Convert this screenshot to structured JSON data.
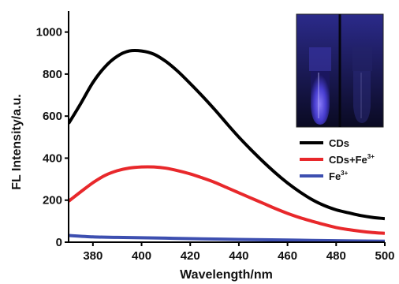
{
  "chart_data": {
    "type": "line",
    "xlabel": "Wavelength/nm",
    "ylabel": "FL Intensity/a.u.",
    "xlim": [
      370,
      500
    ],
    "ylim": [
      0,
      1100
    ],
    "xticks": [
      380,
      400,
      420,
      440,
      460,
      480,
      500
    ],
    "yticks": [
      0,
      200,
      400,
      600,
      800,
      1000
    ],
    "legend": "bottom-right inside",
    "series": [
      {
        "name": "CDs",
        "color": "#000000",
        "x": [
          370,
          375,
          380,
          385,
          390,
          395,
          400,
          405,
          410,
          415,
          420,
          425,
          430,
          435,
          440,
          445,
          450,
          455,
          460,
          465,
          470,
          475,
          480,
          485,
          490,
          495,
          500
        ],
        "y": [
          565,
          660,
          760,
          835,
          885,
          910,
          910,
          895,
          860,
          812,
          755,
          695,
          632,
          565,
          500,
          440,
          383,
          330,
          282,
          240,
          203,
          175,
          154,
          140,
          127,
          118,
          112
        ]
      },
      {
        "name": "CDs+Fe",
        "sup": "3+",
        "color": "#e8282b",
        "x": [
          370,
          375,
          380,
          385,
          390,
          395,
          400,
          405,
          410,
          415,
          420,
          425,
          430,
          435,
          440,
          445,
          450,
          455,
          460,
          465,
          470,
          475,
          480,
          485,
          490,
          495,
          500
        ],
        "y": [
          195,
          240,
          283,
          318,
          340,
          353,
          358,
          358,
          352,
          340,
          325,
          306,
          285,
          260,
          235,
          210,
          185,
          160,
          137,
          117,
          100,
          84,
          70,
          60,
          52,
          46,
          42
        ]
      },
      {
        "name": "Fe",
        "sup": "3+",
        "color": "#3d4fb0",
        "x": [
          370,
          380,
          390,
          400,
          410,
          420,
          440,
          460,
          480,
          500
        ],
        "y": [
          32,
          25,
          23,
          21,
          19,
          17,
          13,
          10,
          7,
          5
        ]
      }
    ],
    "inset": "photo of two vials under UV light"
  }
}
